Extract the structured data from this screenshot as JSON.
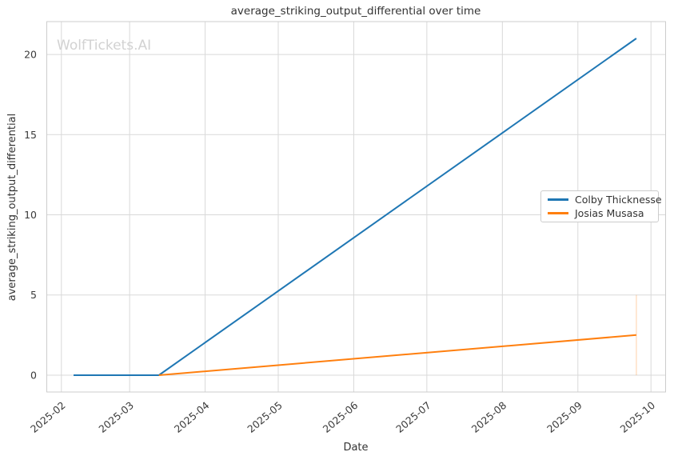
{
  "watermark": "WolfTickets.AI",
  "chart_data": {
    "type": "line",
    "title": "average_striking_output_differential over time",
    "xlabel": "Date",
    "ylabel": "average_striking_output_differential",
    "x_tick_labels": [
      "2025-02",
      "2025-03",
      "2025-04",
      "2025-05",
      "2025-06",
      "2025-07",
      "2025-08",
      "2025-09",
      "2025-10"
    ],
    "y_ticks": [
      0,
      5,
      10,
      15,
      20
    ],
    "xlim": [
      "2025-01-26",
      "2025-10-07"
    ],
    "ylim": [
      -1.05,
      22.05
    ],
    "grid": true,
    "grid_color": "#d9d9d9",
    "spine_color": "#cccccc",
    "legend_position": "center right",
    "series": [
      {
        "name": "Colby Thicknesse",
        "color": "#1f77b4",
        "points": [
          [
            "2025-02-06",
            0
          ],
          [
            "2025-03-13",
            0
          ],
          [
            "2025-09-25",
            21
          ]
        ]
      },
      {
        "name": "Josias Musasa",
        "color": "#ff7f0e",
        "points": [
          [
            "2025-03-13",
            0
          ],
          [
            "2025-09-25",
            2.5
          ]
        ]
      }
    ],
    "annotations": [
      {
        "type": "vline",
        "x": "2025-09-25",
        "y1": 0,
        "y2": 5,
        "color": "#ff7f0e",
        "opacity": 0.3
      }
    ]
  }
}
